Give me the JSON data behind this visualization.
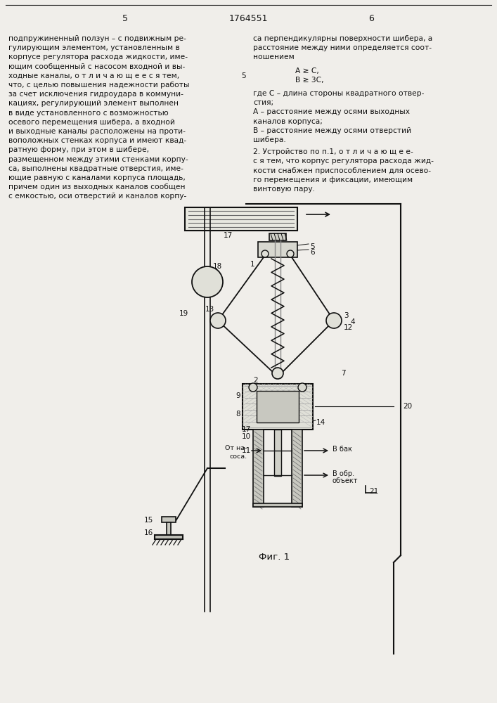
{
  "page_numbers": [
    "5",
    "1764551",
    "6"
  ],
  "left_text": [
    "подпружиненный ползун – с подвижным ре-",
    "гулирующим элементом, установленным в",
    "корпусе регулятора расхода жидкости, име-",
    "ющим сообщенный с насосом входной и вы-",
    "ходные каналы, о т л и ч а ю щ е е с я тем,",
    "что, с целью повышения надежности работы",
    "за счет исключения гидроудара в коммуни-",
    "кациях, регулирующий элемент выполнен",
    "в виде установленного с возможностью",
    "осевого перемещения шибера, а входной",
    "и выходные каналы расположены на проти-",
    "воположных стенках корпуса и имеют квад-",
    "ратную форму, при этом в шибере,",
    "размещенном между этими стенками корпу-",
    "са, выполнены квадратные отверстия, име-",
    "ющие равную с каналами корпуса площадь,",
    "причем один из выходных каналов сообщен",
    "с емкостью, оси отверстий и каналов корпу-"
  ],
  "right_text_top": [
    "са перпендикулярны поверхности шибера, а",
    "расстояние между ними определяется соот-",
    "ношением"
  ],
  "formula_indent": 60,
  "formula_lines": [
    "A ≥ C,",
    "B ≥ 3C,"
  ],
  "legend_lines": [
    "где С – длина стороны квадратного отвер-",
    "стия;",
    "А – расстояние между осями выходных",
    "каналов корпуса;",
    "В – расстояние между осями отверстий",
    "шибера."
  ],
  "claim2_lines": [
    "2. Устройство по п.1, о т л и ч а ю щ е е-",
    "с я тем, что корпус регулятора расхода жид-",
    "кости снабжен приспособлением для осево-",
    "го перемещения и фиксации, имеющим",
    "винтовую пару."
  ],
  "bg_color": "#f0eeea",
  "text_color": "#111111",
  "line_color": "#111111",
  "draw_bg": "#f0eeea"
}
